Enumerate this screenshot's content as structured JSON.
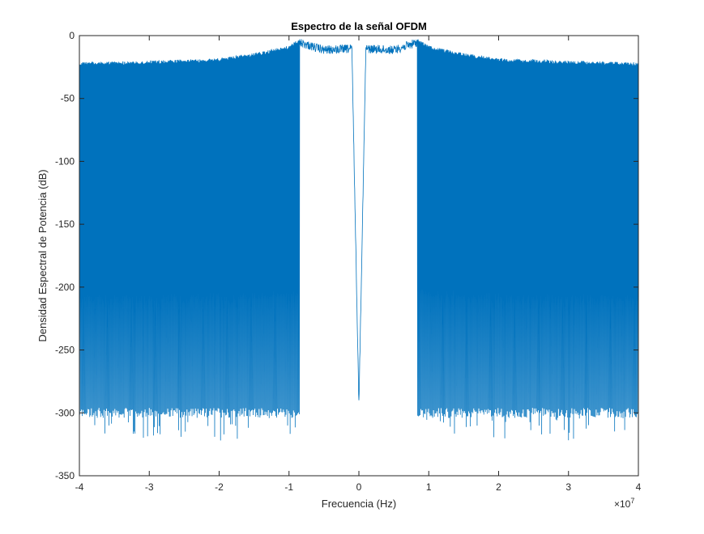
{
  "chart_data": {
    "type": "line",
    "title": "Espectro de la señal OFDM",
    "xlabel": "Frecuencia (Hz)",
    "ylabel": "Densidad Espectral de Potencia (dB)",
    "x_multiplier_label": "×10",
    "x_multiplier_exponent": "7",
    "xlim": [
      -4,
      4
    ],
    "ylim": [
      -350,
      0
    ],
    "x_ticks": [
      -4,
      -3,
      -2,
      -1,
      0,
      1,
      2,
      3,
      4
    ],
    "x_tick_labels": [
      "-4",
      "-3",
      "-2",
      "-1",
      "0",
      "1",
      "2",
      "3",
      "4"
    ],
    "y_ticks": [
      0,
      -50,
      -100,
      -150,
      -200,
      -250,
      -300,
      -350
    ],
    "y_tick_labels": [
      "0",
      "-50",
      "-100",
      "-150",
      "-200",
      "-250",
      "-300",
      "-350"
    ],
    "grid": false,
    "line_color": "#0072BD",
    "series": [
      {
        "values_description_points": [
          {
            "x": -4.0,
            "y": -21
          },
          {
            "x": -3.0,
            "y": -20
          },
          {
            "x": -2.0,
            "y": -18
          },
          {
            "x": -1.5,
            "y": -14
          },
          {
            "x": -1.0,
            "y": -8
          },
          {
            "x": -0.85,
            "y": -2
          },
          {
            "x": -0.5,
            "y": -8
          },
          {
            "x": -0.1,
            "y": -7
          },
          {
            "x": 0.0,
            "y": -290
          },
          {
            "x": 0.1,
            "y": -7
          },
          {
            "x": 0.5,
            "y": -8
          },
          {
            "x": 0.83,
            "y": -2
          },
          {
            "x": 1.0,
            "y": -8
          },
          {
            "x": 1.5,
            "y": -14
          },
          {
            "x": 2.0,
            "y": -18
          },
          {
            "x": 3.0,
            "y": -20
          },
          {
            "x": 4.0,
            "y": -21
          }
        ],
        "null_floor_dB": -300,
        "null_floor_extremes_dB": [
          -322,
          -292
        ],
        "occupied_band_edges": [
          -0.85,
          0.83
        ]
      }
    ]
  }
}
